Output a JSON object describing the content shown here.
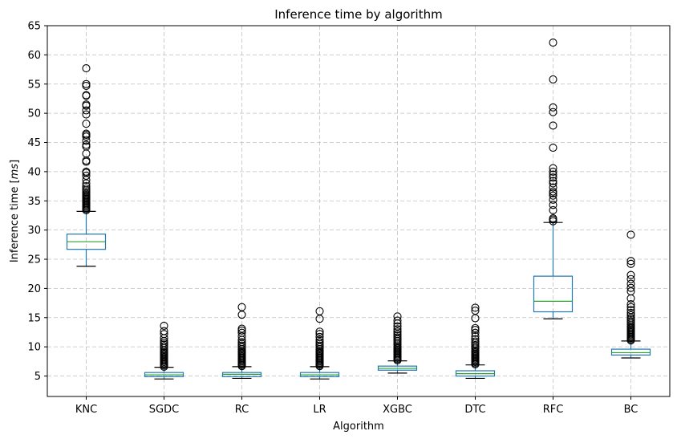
{
  "chart_data": {
    "type": "box",
    "title": "Inference time by algorithm",
    "xlabel": "Algorithm",
    "ylabel": "Inference time [ms]",
    "ylabel_parts": {
      "prefix": "Inference time [",
      "unit": "ms",
      "suffix": "]"
    },
    "ylim": [
      1.5,
      65
    ],
    "yticks": [
      5,
      10,
      15,
      20,
      25,
      30,
      35,
      40,
      45,
      50,
      55,
      60,
      65
    ],
    "grid": true,
    "colors": {
      "box": "#1f77b4",
      "median": "#2ca02c",
      "whisker": "#1f77b4",
      "cap": "#000000",
      "flier": "#000000",
      "grid": "#b0b0b0"
    },
    "categories": [
      "KNC",
      "SGDC",
      "RC",
      "LR",
      "XGBC",
      "DTC",
      "RFC",
      "BC"
    ],
    "boxes": [
      {
        "name": "KNC",
        "whislo": 23.8,
        "q1": 26.7,
        "med": 28.0,
        "q3": 29.3,
        "whishi": 33.2,
        "fliers": [
          33.4,
          33.6,
          33.8,
          34.0,
          34.2,
          34.4,
          34.6,
          34.8,
          35.0,
          35.2,
          35.4,
          35.6,
          35.8,
          36.0,
          36.2,
          36.5,
          36.8,
          37.1,
          37.5,
          38.0,
          38.6,
          39.3,
          39.8,
          40.0,
          41.7,
          41.9,
          43.1,
          44.3,
          44.6,
          45.3,
          46.0,
          46.3,
          46.5,
          48.2,
          49.8,
          50.5,
          51.3,
          51.5,
          53.0,
          53.1,
          54.7,
          55.0,
          57.7
        ]
      },
      {
        "name": "SGDC",
        "whislo": 4.5,
        "q1": 4.9,
        "med": 5.2,
        "q3": 5.6,
        "whishi": 6.5,
        "fliers": [
          6.6,
          6.8,
          7.0,
          7.2,
          7.4,
          7.6,
          7.8,
          8.0,
          8.2,
          8.4,
          8.6,
          8.8,
          9.0,
          9.2,
          9.5,
          9.8,
          10.1,
          10.4,
          10.7,
          11.0,
          11.5,
          12.2,
          12.7,
          13.6
        ]
      },
      {
        "name": "RC",
        "whislo": 4.6,
        "q1": 4.9,
        "med": 5.3,
        "q3": 5.6,
        "whishi": 6.6,
        "fliers": [
          6.7,
          6.9,
          7.1,
          7.3,
          7.5,
          7.7,
          7.9,
          8.1,
          8.3,
          8.5,
          8.7,
          8.9,
          9.1,
          9.3,
          9.6,
          9.9,
          10.2,
          10.5,
          10.8,
          11.2,
          11.8,
          12.4,
          12.8,
          13.1,
          15.5,
          16.8
        ]
      },
      {
        "name": "LR",
        "whislo": 4.5,
        "q1": 4.9,
        "med": 5.2,
        "q3": 5.6,
        "whishi": 6.6,
        "fliers": [
          6.7,
          6.9,
          7.1,
          7.3,
          7.5,
          7.7,
          7.9,
          8.1,
          8.3,
          8.5,
          8.7,
          8.9,
          9.1,
          9.3,
          9.6,
          9.9,
          10.2,
          10.5,
          10.8,
          11.2,
          11.7,
          12.2,
          12.6,
          14.8,
          16.1
        ]
      },
      {
        "name": "XGBC",
        "whislo": 5.5,
        "q1": 6.0,
        "med": 6.3,
        "q3": 6.7,
        "whishi": 7.6,
        "fliers": [
          7.7,
          7.9,
          8.1,
          8.3,
          8.5,
          8.7,
          8.9,
          9.1,
          9.3,
          9.5,
          9.7,
          9.9,
          10.1,
          10.4,
          10.7,
          11.0,
          11.3,
          11.6,
          11.9,
          12.2,
          12.6,
          13.0,
          13.5,
          14.0,
          14.5,
          15.2
        ]
      },
      {
        "name": "DTC",
        "whislo": 4.6,
        "q1": 5.0,
        "med": 5.4,
        "q3": 5.9,
        "whishi": 6.9,
        "fliers": [
          7.0,
          7.2,
          7.4,
          7.6,
          7.8,
          8.0,
          8.2,
          8.4,
          8.6,
          8.8,
          9.0,
          9.2,
          9.4,
          9.7,
          10.0,
          10.3,
          10.6,
          10.9,
          11.3,
          11.8,
          12.4,
          12.9,
          13.2,
          14.9,
          16.2,
          16.7
        ]
      },
      {
        "name": "RFC",
        "whislo": 14.8,
        "q1": 16.0,
        "med": 17.8,
        "q3": 22.1,
        "whishi": 31.3,
        "fliers": [
          31.5,
          31.8,
          32.0,
          33.4,
          34.3,
          35.2,
          35.9,
          36.3,
          36.6,
          37.3,
          38.0,
          38.4,
          39.0,
          39.5,
          40.0,
          40.6,
          44.1,
          47.9,
          50.2,
          51.0,
          55.8,
          62.1
        ]
      },
      {
        "name": "BC",
        "whislo": 8.1,
        "q1": 8.6,
        "med": 9.0,
        "q3": 9.6,
        "whishi": 11.0,
        "fliers": [
          11.1,
          11.3,
          11.5,
          11.7,
          11.9,
          12.1,
          12.3,
          12.5,
          12.7,
          12.9,
          13.1,
          13.3,
          13.5,
          13.8,
          14.1,
          14.4,
          14.7,
          15.0,
          15.4,
          15.8,
          16.3,
          16.8,
          17.3,
          18.3,
          19.5,
          20.1,
          20.8,
          21.6,
          22.3,
          24.2,
          24.7,
          29.2
        ]
      }
    ]
  }
}
